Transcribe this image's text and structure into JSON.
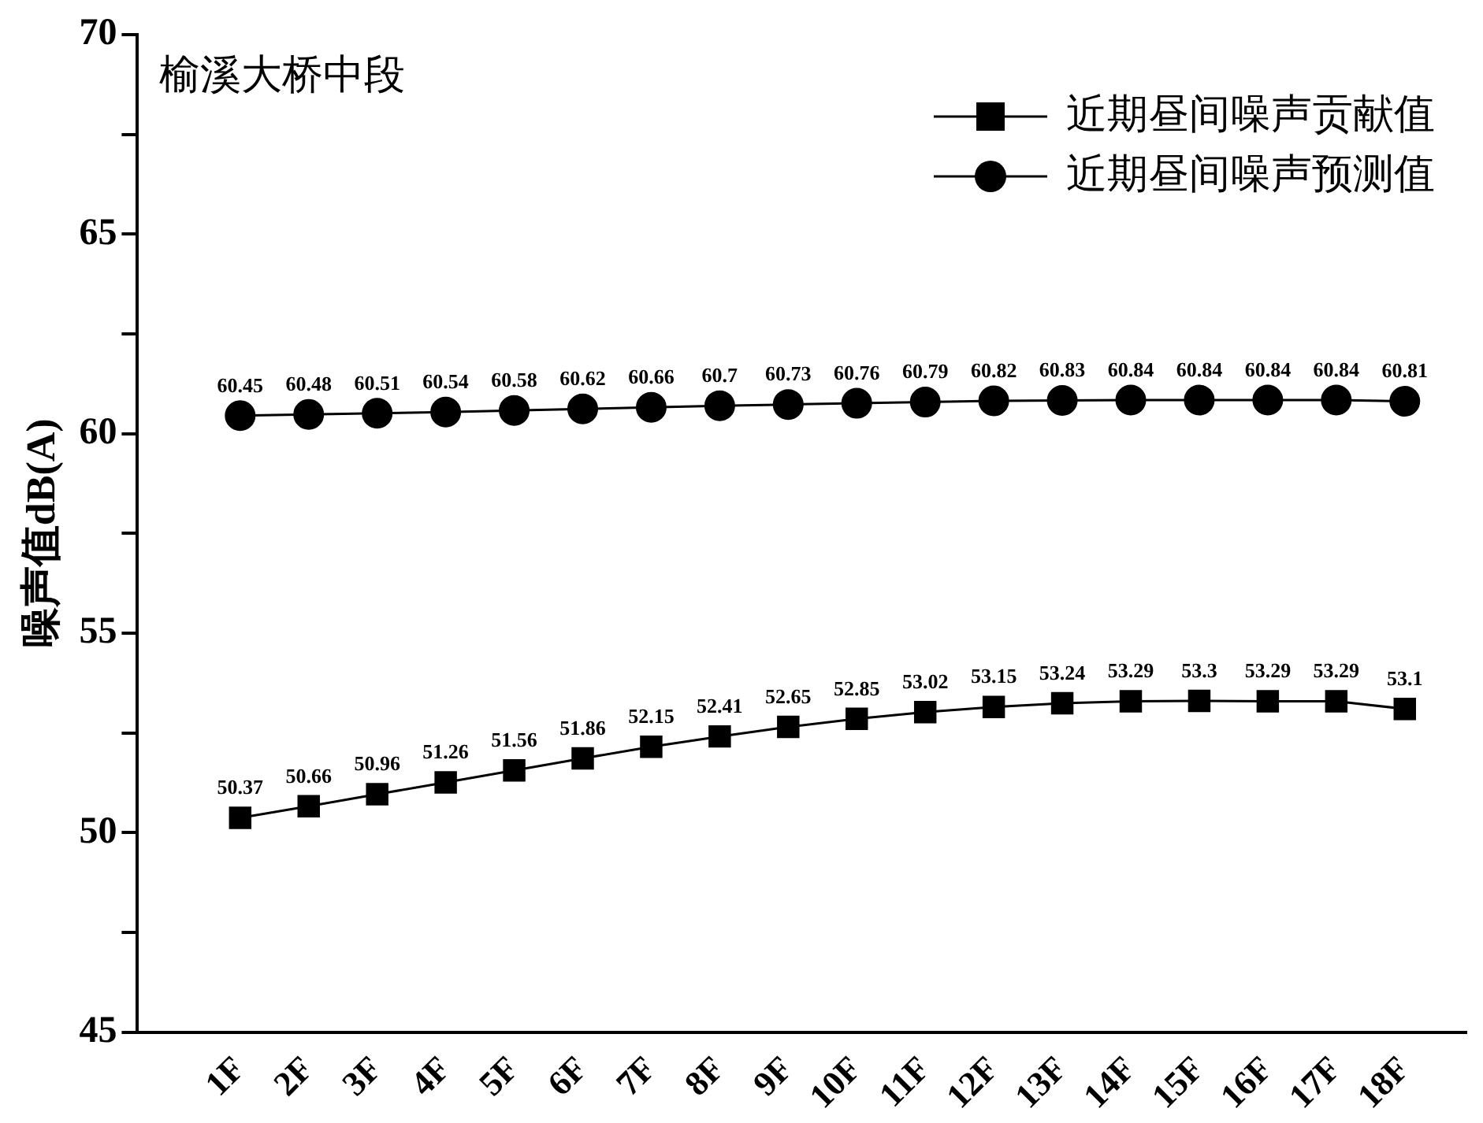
{
  "chart_data": {
    "type": "line",
    "ylabel": "噪声值dB(A)",
    "annotations": [
      "榆溪大桥中段"
    ],
    "categories": [
      "1F",
      "2F",
      "3F",
      "4F",
      "5F",
      "6F",
      "7F",
      "8F",
      "9F",
      "10F",
      "11F",
      "12F",
      "13F",
      "14F",
      "15F",
      "16F",
      "17F",
      "18F"
    ],
    "series": [
      {
        "name": "近期昼间噪声贡献值",
        "color": "#000000",
        "marker": "square",
        "values": [
          50.37,
          50.66,
          50.96,
          51.26,
          51.56,
          51.86,
          52.15,
          52.41,
          52.65,
          52.85,
          53.02,
          53.15,
          53.24,
          53.29,
          53.3,
          53.29,
          53.29,
          53.1
        ]
      },
      {
        "name": "近期昼间噪声预测值",
        "color": "#000000",
        "marker": "circle",
        "values": [
          60.45,
          60.48,
          60.51,
          60.54,
          60.58,
          60.62,
          60.66,
          60.7,
          60.73,
          60.76,
          60.79,
          60.82,
          60.83,
          60.84,
          60.84,
          60.84,
          60.84,
          60.81
        ]
      }
    ],
    "ylim": [
      45,
      70
    ],
    "yticks": [
      45,
      {
        "value": 47.5,
        "label": null
      },
      50,
      {
        "value": 52.5,
        "label": null
      },
      55,
      {
        "value": 57.5,
        "label": null
      },
      60,
      {
        "value": 62.5,
        "label": null
      },
      65,
      {
        "value": 67.5,
        "label": null
      },
      70
    ],
    "grid": false,
    "legend": "top right",
    "data_labels": true,
    "line_style": "solid"
  }
}
